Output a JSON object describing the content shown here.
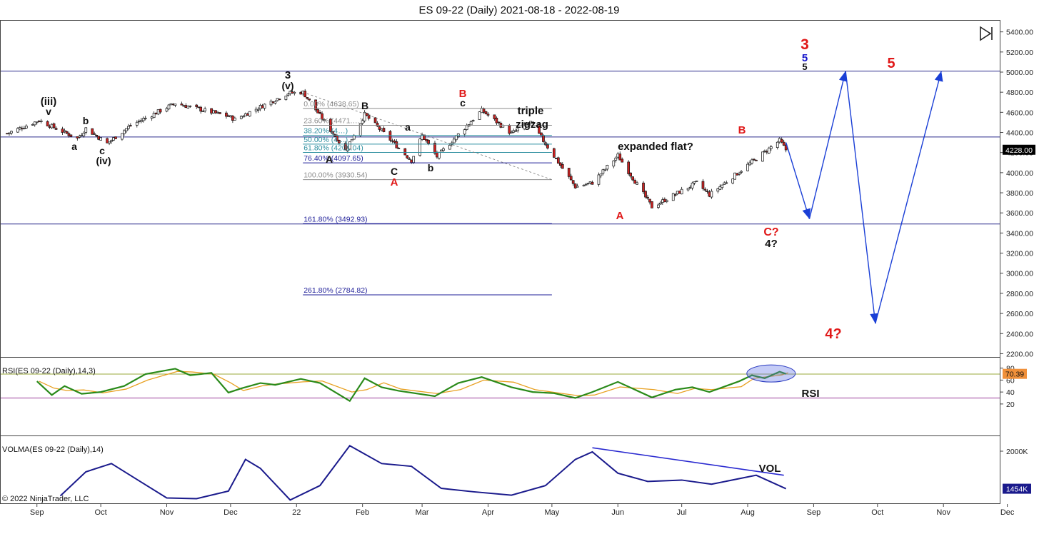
{
  "title": "ES 09-22 (Daily)  2021-08-18 - 2022-08-19",
  "copyright": "© 2022 NinjaTrader, LLC",
  "colors": {
    "up_candle": "#ffffff",
    "down_candle": "#cc2222",
    "rsi_line": "#2a8a1a",
    "rsi_signal": "#e8a020",
    "volume_line": "#1a1a8c",
    "fib_blue": "#1f1f99",
    "fib_teal": "#2e8fa0",
    "fib_gray": "#8c8c8c",
    "label_red": "#e01818",
    "label_blue": "#1515cc",
    "price_tag": "#000000",
    "rsi_tag": "#f0903a",
    "vol_tag": "#1a1a8c"
  },
  "x_axis_labels": [
    "Sep",
    "Oct",
    "Nov",
    "Dec",
    "22",
    "Feb",
    "Mar",
    "Apr",
    "May",
    "Jun",
    "Jul",
    "Aug",
    "Sep",
    "Oct",
    "Nov",
    "Dec"
  ],
  "panels": {
    "price": {
      "y_ticks": [
        "5400.00",
        "5200.00",
        "5000.00",
        "4800.00",
        "4600.00",
        "4400.00",
        "4200.00",
        "4000.00",
        "3800.00",
        "3600.00",
        "3400.00",
        "3200.00",
        "3000.00",
        "2800.00",
        "2600.00",
        "2400.00",
        "2200.00"
      ],
      "last_value": "4228.00",
      "horizontal_lines": [
        5010,
        4355,
        3490
      ]
    },
    "rsi": {
      "label": "RSI(ES 09-22 (Daily),14,3)",
      "y_ticks": [
        "80",
        "60",
        "40",
        "20"
      ],
      "last_value": "70.39",
      "ref_lines": [
        70,
        30
      ],
      "annotation": "RSI"
    },
    "volume": {
      "label": "VOLMA(ES 09-22 (Daily),14)",
      "y_ticks": [
        "2000K"
      ],
      "last_value": "1454K",
      "annotation": "VOL"
    }
  },
  "fib_levels": [
    {
      "label": "0.00% (4638.65)",
      "value": 4638.65
    },
    {
      "label": "23.60% (4471.…)",
      "value": 4471
    },
    {
      "label": "38.20% (4…)",
      "value": 4370
    },
    {
      "label": "50.00% (4…)",
      "value": 4284
    },
    {
      "label": "61.80% (4201.04)",
      "value": 4201.04
    },
    {
      "label": "76.40% (4097.65)",
      "value": 4097.65
    },
    {
      "label": "100.00% (3930.54)",
      "value": 3930.54
    },
    {
      "label": "161.80% (3492.93)",
      "value": 3492.93
    },
    {
      "label": "261.80% (2784.82)",
      "value": 2784.82
    }
  ],
  "wave_labels": {
    "iii": "(iii)",
    "v_small": "v",
    "a1": "a",
    "b1": "b",
    "c1": "c",
    "iv": "(iv)",
    "three_top": "3",
    "v_paren": "(v)",
    "A_black": "A",
    "B_black": "B",
    "C_black": "C",
    "a2": "a",
    "b2": "b",
    "c2": "c",
    "A_red1": "A",
    "B_red1": "B",
    "triple": "triple",
    "zigzag": "zigzag",
    "expanded_flat": "expanded flat?",
    "A_red2": "A",
    "B_red2": "B",
    "C_q": "C?",
    "four_q_black": "4?",
    "three_red": "3",
    "five_blue": "5",
    "five_black": "5",
    "four_q_red": "4?",
    "five_red": "5"
  },
  "chart_data": [
    {
      "type": "candlestick",
      "title": "ES 09-22 (Daily)  2021-08-18 - 2022-08-19",
      "series": [
        {
          "name": "ES 09-22 (Daily)",
          "close_path": [
            {
              "x": "2021-08-18",
              "y": 4390
            },
            {
              "x": "2021-09-02",
              "y": 4520
            },
            {
              "x": "2021-09-20",
              "y": 4340
            },
            {
              "x": "2021-09-24",
              "y": 4440
            },
            {
              "x": "2021-10-04",
              "y": 4290
            },
            {
              "x": "2021-10-15",
              "y": 4470
            },
            {
              "x": "2021-11-05",
              "y": 4690
            },
            {
              "x": "2021-11-30",
              "y": 4560
            },
            {
              "x": "2021-12-03",
              "y": 4530
            },
            {
              "x": "2021-12-28",
              "y": 4790
            },
            {
              "x": "2022-01-04",
              "y": 4800
            },
            {
              "x": "2022-01-24",
              "y": 4220
            },
            {
              "x": "2022-02-02",
              "y": 4580
            },
            {
              "x": "2022-02-24",
              "y": 4120
            },
            {
              "x": "2022-03-01",
              "y": 4370
            },
            {
              "x": "2022-03-08",
              "y": 4160
            },
            {
              "x": "2022-03-29",
              "y": 4620
            },
            {
              "x": "2022-04-12",
              "y": 4390
            },
            {
              "x": "2022-04-21",
              "y": 4500
            },
            {
              "x": "2022-05-12",
              "y": 3860
            },
            {
              "x": "2022-05-20",
              "y": 3900
            },
            {
              "x": "2022-06-01",
              "y": 4170
            },
            {
              "x": "2022-06-17",
              "y": 3660
            },
            {
              "x": "2022-07-08",
              "y": 3900
            },
            {
              "x": "2022-07-14",
              "y": 3780
            },
            {
              "x": "2022-08-16",
              "y": 4320
            },
            {
              "x": "2022-08-19",
              "y": 4228
            }
          ]
        },
        {
          "name": "projection",
          "points": [
            {
              "x": "2022-08-19",
              "y": 4300
            },
            {
              "x": "2022-08-30",
              "y": 3540
            },
            {
              "x": "2022-09-16",
              "y": 5010
            },
            {
              "x": "2022-09-30",
              "y": 2500
            },
            {
              "x": "2022-10-31",
              "y": 5010
            }
          ]
        }
      ],
      "x_range": [
        "2021-08-18",
        "2022-12-31"
      ],
      "ylim": [
        2200,
        5400
      ],
      "last_value": 4228.0
    },
    {
      "type": "line",
      "series": [
        {
          "name": "RSI(ES 09-22 (Daily),14,3)",
          "points": [
            {
              "x": "2021-09-01",
              "y": 58
            },
            {
              "x": "2021-09-08",
              "y": 35
            },
            {
              "x": "2021-09-14",
              "y": 50
            },
            {
              "x": "2021-09-22",
              "y": 37
            },
            {
              "x": "2021-10-01",
              "y": 40
            },
            {
              "x": "2021-10-12",
              "y": 50
            },
            {
              "x": "2021-10-22",
              "y": 70
            },
            {
              "x": "2021-11-05",
              "y": 79
            },
            {
              "x": "2021-11-12",
              "y": 68
            },
            {
              "x": "2021-11-22",
              "y": 72
            },
            {
              "x": "2021-11-30",
              "y": 39
            },
            {
              "x": "2021-12-06",
              "y": 46
            },
            {
              "x": "2021-12-15",
              "y": 55
            },
            {
              "x": "2021-12-22",
              "y": 52
            },
            {
              "x": "2022-01-03",
              "y": 62
            },
            {
              "x": "2022-01-12",
              "y": 55
            },
            {
              "x": "2022-01-26",
              "y": 25
            },
            {
              "x": "2022-02-02",
              "y": 63
            },
            {
              "x": "2022-02-10",
              "y": 48
            },
            {
              "x": "2022-02-18",
              "y": 42
            },
            {
              "x": "2022-03-07",
              "y": 33
            },
            {
              "x": "2022-03-18",
              "y": 55
            },
            {
              "x": "2022-03-29",
              "y": 65
            },
            {
              "x": "2022-04-12",
              "y": 48
            },
            {
              "x": "2022-04-22",
              "y": 40
            },
            {
              "x": "2022-05-02",
              "y": 38
            },
            {
              "x": "2022-05-12",
              "y": 30
            },
            {
              "x": "2022-05-20",
              "y": 40
            },
            {
              "x": "2022-06-01",
              "y": 57
            },
            {
              "x": "2022-06-17",
              "y": 31
            },
            {
              "x": "2022-06-28",
              "y": 44
            },
            {
              "x": "2022-07-06",
              "y": 48
            },
            {
              "x": "2022-07-14",
              "y": 40
            },
            {
              "x": "2022-07-28",
              "y": 58
            },
            {
              "x": "2022-08-03",
              "y": 68
            },
            {
              "x": "2022-08-09",
              "y": 63
            },
            {
              "x": "2022-08-16",
              "y": 74
            },
            {
              "x": "2022-08-19",
              "y": 70.39
            }
          ]
        }
      ],
      "ylim": [
        15,
        85
      ],
      "last_value": 70.39
    },
    {
      "type": "line",
      "series": [
        {
          "name": "VOLMA(ES 09-22 (Daily),14)",
          "points": [
            {
              "x": "2021-09-12",
              "y": 1350
            },
            {
              "x": "2021-09-24",
              "y": 1700
            },
            {
              "x": "2021-10-06",
              "y": 1820
            },
            {
              "x": "2021-10-20",
              "y": 1550
            },
            {
              "x": "2021-11-01",
              "y": 1320
            },
            {
              "x": "2021-11-15",
              "y": 1310
            },
            {
              "x": "2021-11-30",
              "y": 1420
            },
            {
              "x": "2021-12-08",
              "y": 1880
            },
            {
              "x": "2021-12-15",
              "y": 1750
            },
            {
              "x": "2021-12-29",
              "y": 1290
            },
            {
              "x": "2022-01-12",
              "y": 1500
            },
            {
              "x": "2022-01-26",
              "y": 2080
            },
            {
              "x": "2022-02-10",
              "y": 1820
            },
            {
              "x": "2022-02-24",
              "y": 1780
            },
            {
              "x": "2022-03-10",
              "y": 1460
            },
            {
              "x": "2022-03-25",
              "y": 1410
            },
            {
              "x": "2022-04-12",
              "y": 1360
            },
            {
              "x": "2022-04-28",
              "y": 1500
            },
            {
              "x": "2022-05-12",
              "y": 1880
            },
            {
              "x": "2022-05-20",
              "y": 1990
            },
            {
              "x": "2022-06-01",
              "y": 1680
            },
            {
              "x": "2022-06-15",
              "y": 1560
            },
            {
              "x": "2022-07-01",
              "y": 1580
            },
            {
              "x": "2022-07-15",
              "y": 1520
            },
            {
              "x": "2022-08-05",
              "y": 1650
            },
            {
              "x": "2022-08-19",
              "y": 1454
            }
          ]
        }
      ],
      "ylim": [
        1200,
        2150
      ],
      "last_value": 1454
    }
  ]
}
